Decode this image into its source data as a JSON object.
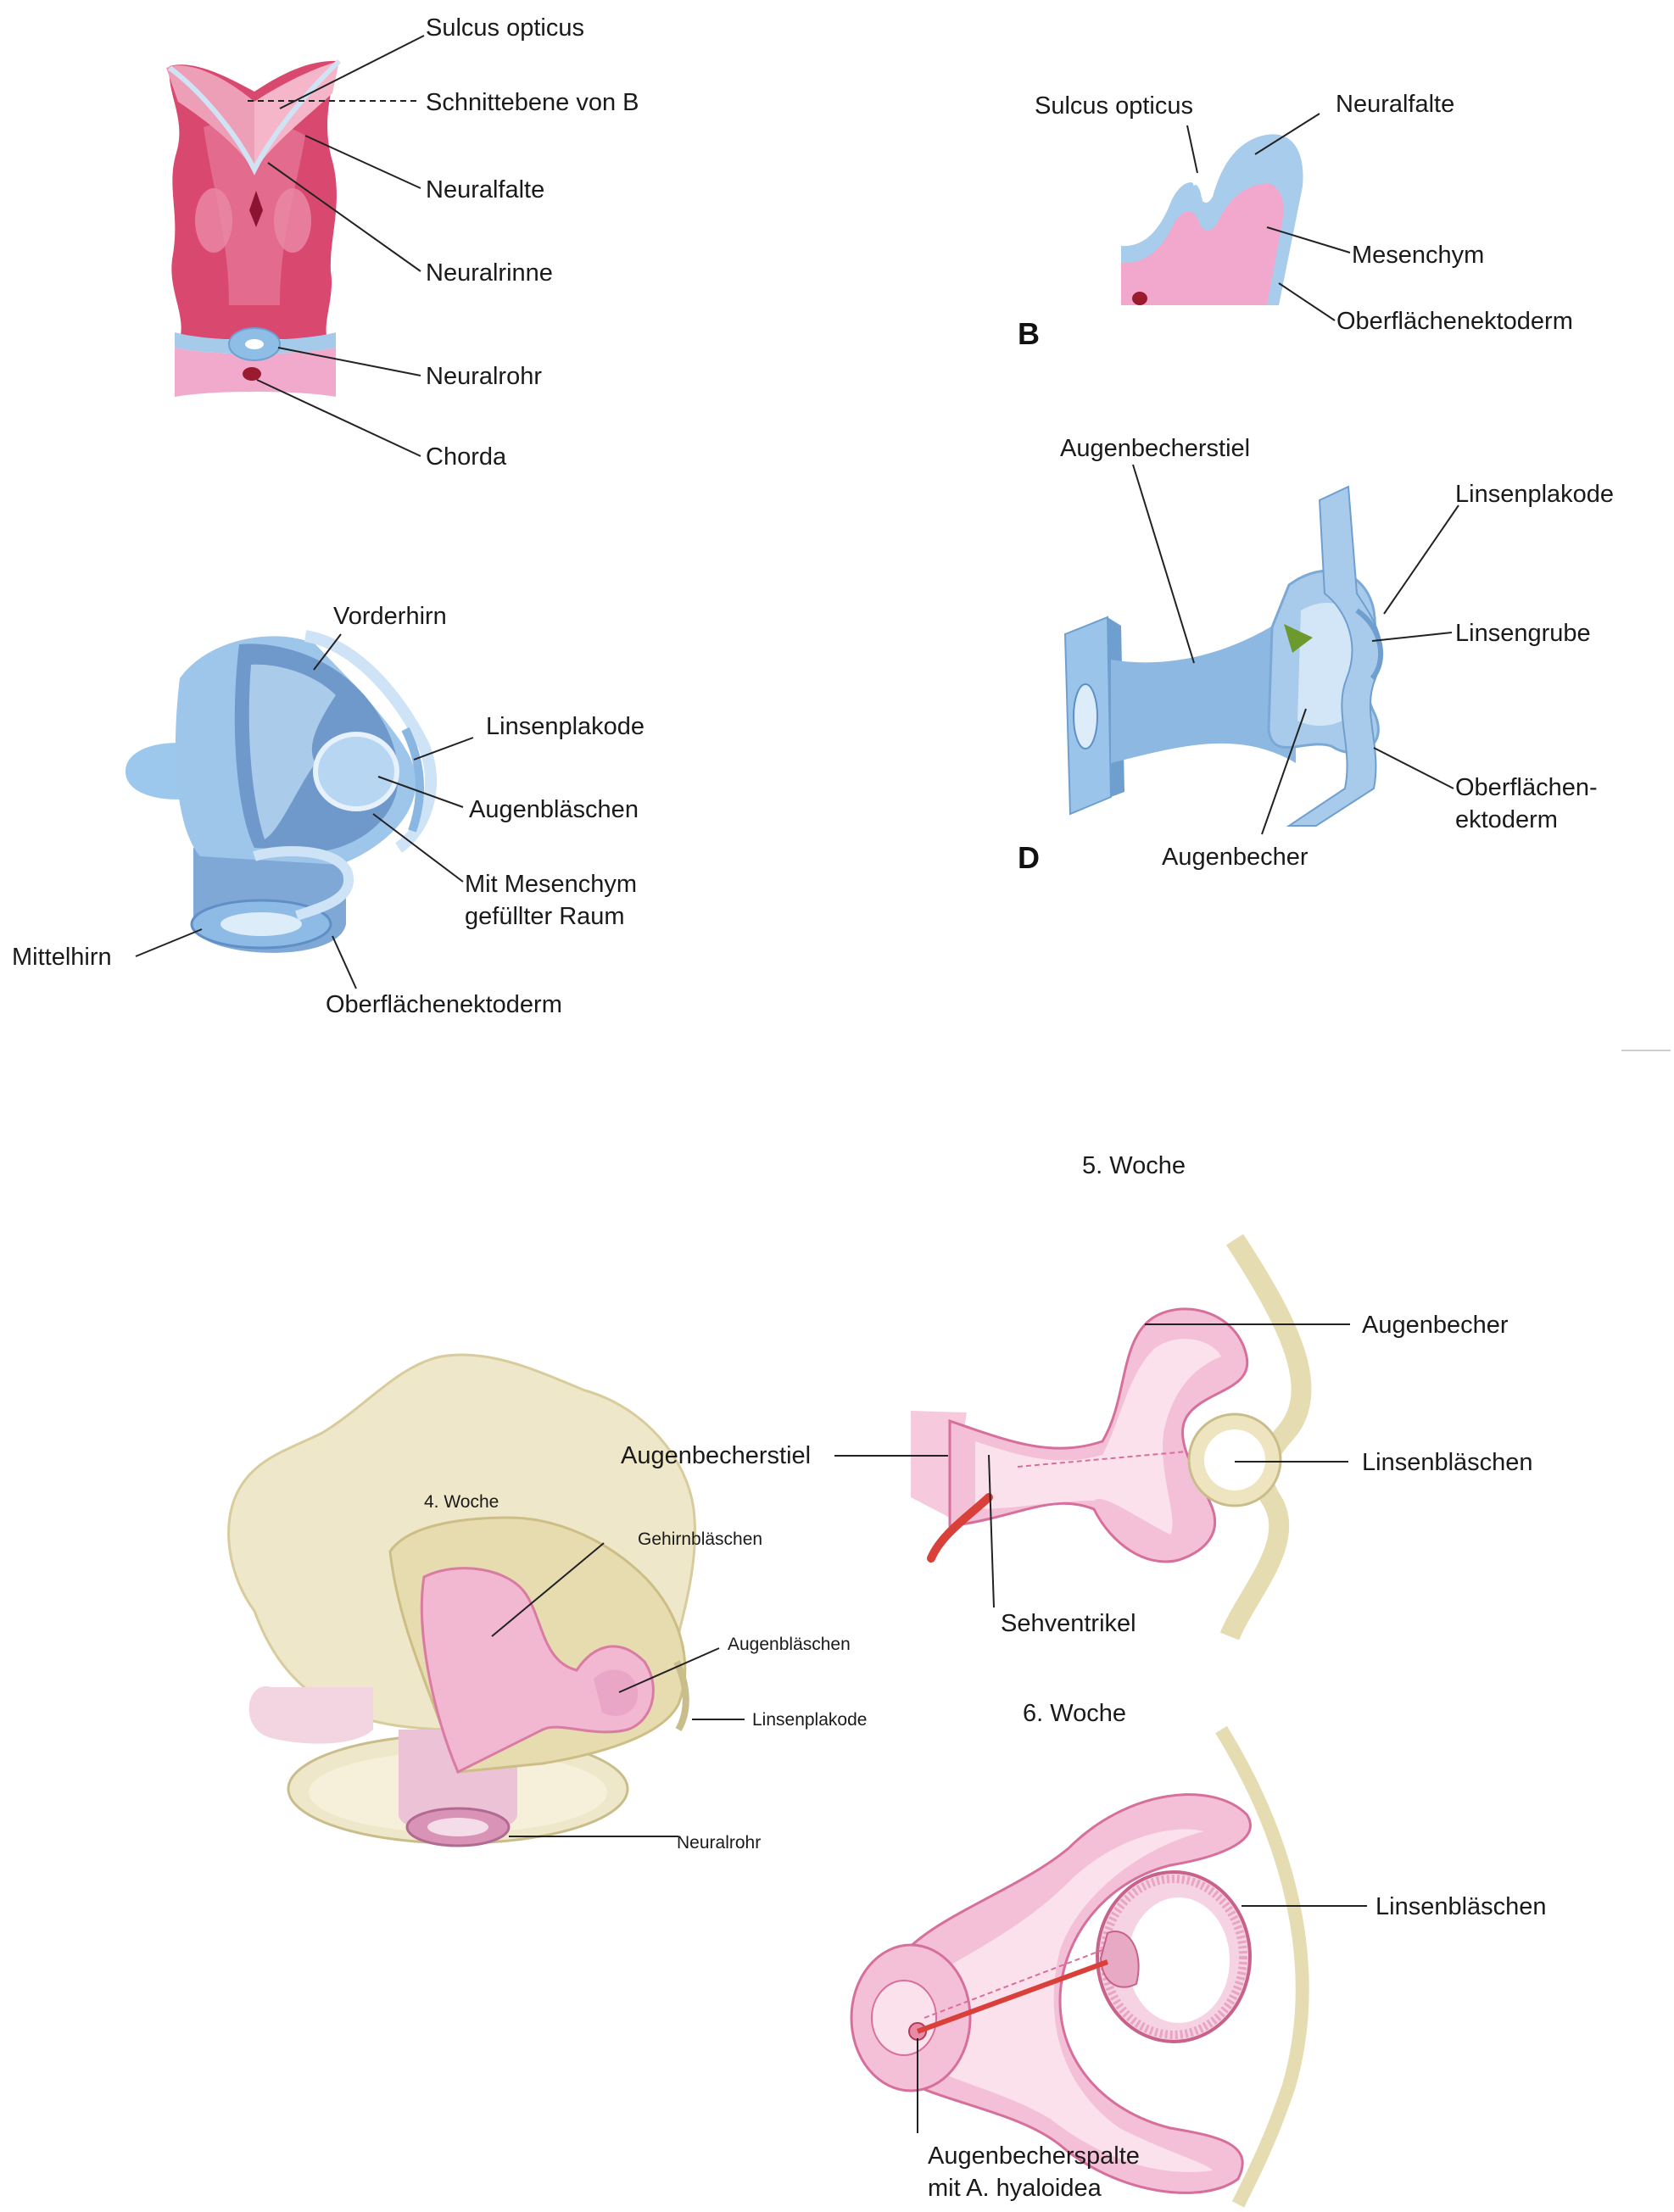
{
  "panel_a": {
    "sulcus_opticus": "Sulcus opticus",
    "schnittebene": "Schnittebene von B",
    "neuralfalte": "Neuralfalte",
    "neuralrinne": "Neuralrinne",
    "neuralrohr": "Neuralrohr",
    "chorda": "Chorda"
  },
  "panel_b": {
    "letter": "B",
    "sulcus_opticus": "Sulcus opticus",
    "neuralfalte": "Neuralfalte",
    "mesenchym": "Mesenchym",
    "oberflaechenektoderm": "Oberflächenektoderm"
  },
  "panel_c": {
    "vorderhirn": "Vorderhirn",
    "linsenplakode": "Linsenplakode",
    "augenblaeschen": "Augenbläschen",
    "mesenchym_raum_1": "Mit Mesenchym",
    "mesenchym_raum_2": "gefüllter Raum",
    "mittelhirn": "Mittelhirn",
    "oberflaechenektoderm": "Oberflächenektoderm"
  },
  "panel_d": {
    "letter": "D",
    "augenbecherstiel": "Augenbecherstiel",
    "linsenplakode": "Linsenplakode",
    "linsengrube": "Linsengrube",
    "oberflaechen_1": "Oberflächen-",
    "oberflaechen_2": "ektoderm",
    "augenbecher": "Augenbecher"
  },
  "panel_woche4": {
    "title": "4. Woche",
    "gehirnblaeschen": "Gehirnbläschen",
    "augenblaeschen": "Augenbläschen",
    "linsenplakode": "Linsenplakode",
    "neuralrohr": "Neuralrohr"
  },
  "panel_woche5": {
    "title": "5. Woche",
    "augenbecher": "Augenbecher",
    "augenbecherstiel": "Augenbecherstiel",
    "linsenblaeschen": "Linsenbläschen",
    "sehventrikel": "Sehventrikel"
  },
  "panel_woche6": {
    "title": "6. Woche",
    "linsenblaeschen": "Linsenbläschen",
    "augenbecherspalte_1": "Augenbecherspalte",
    "augenbecherspalte_2": "mit A. hyaloidea"
  },
  "colors": {
    "neural_pink": "#d9486f",
    "tissue_blue": "#9fc6ea",
    "mesenchyme_pink": "#f3b3d1",
    "tan_ectoderm": "#e9dfb9",
    "vessel_red": "#d9403a"
  }
}
